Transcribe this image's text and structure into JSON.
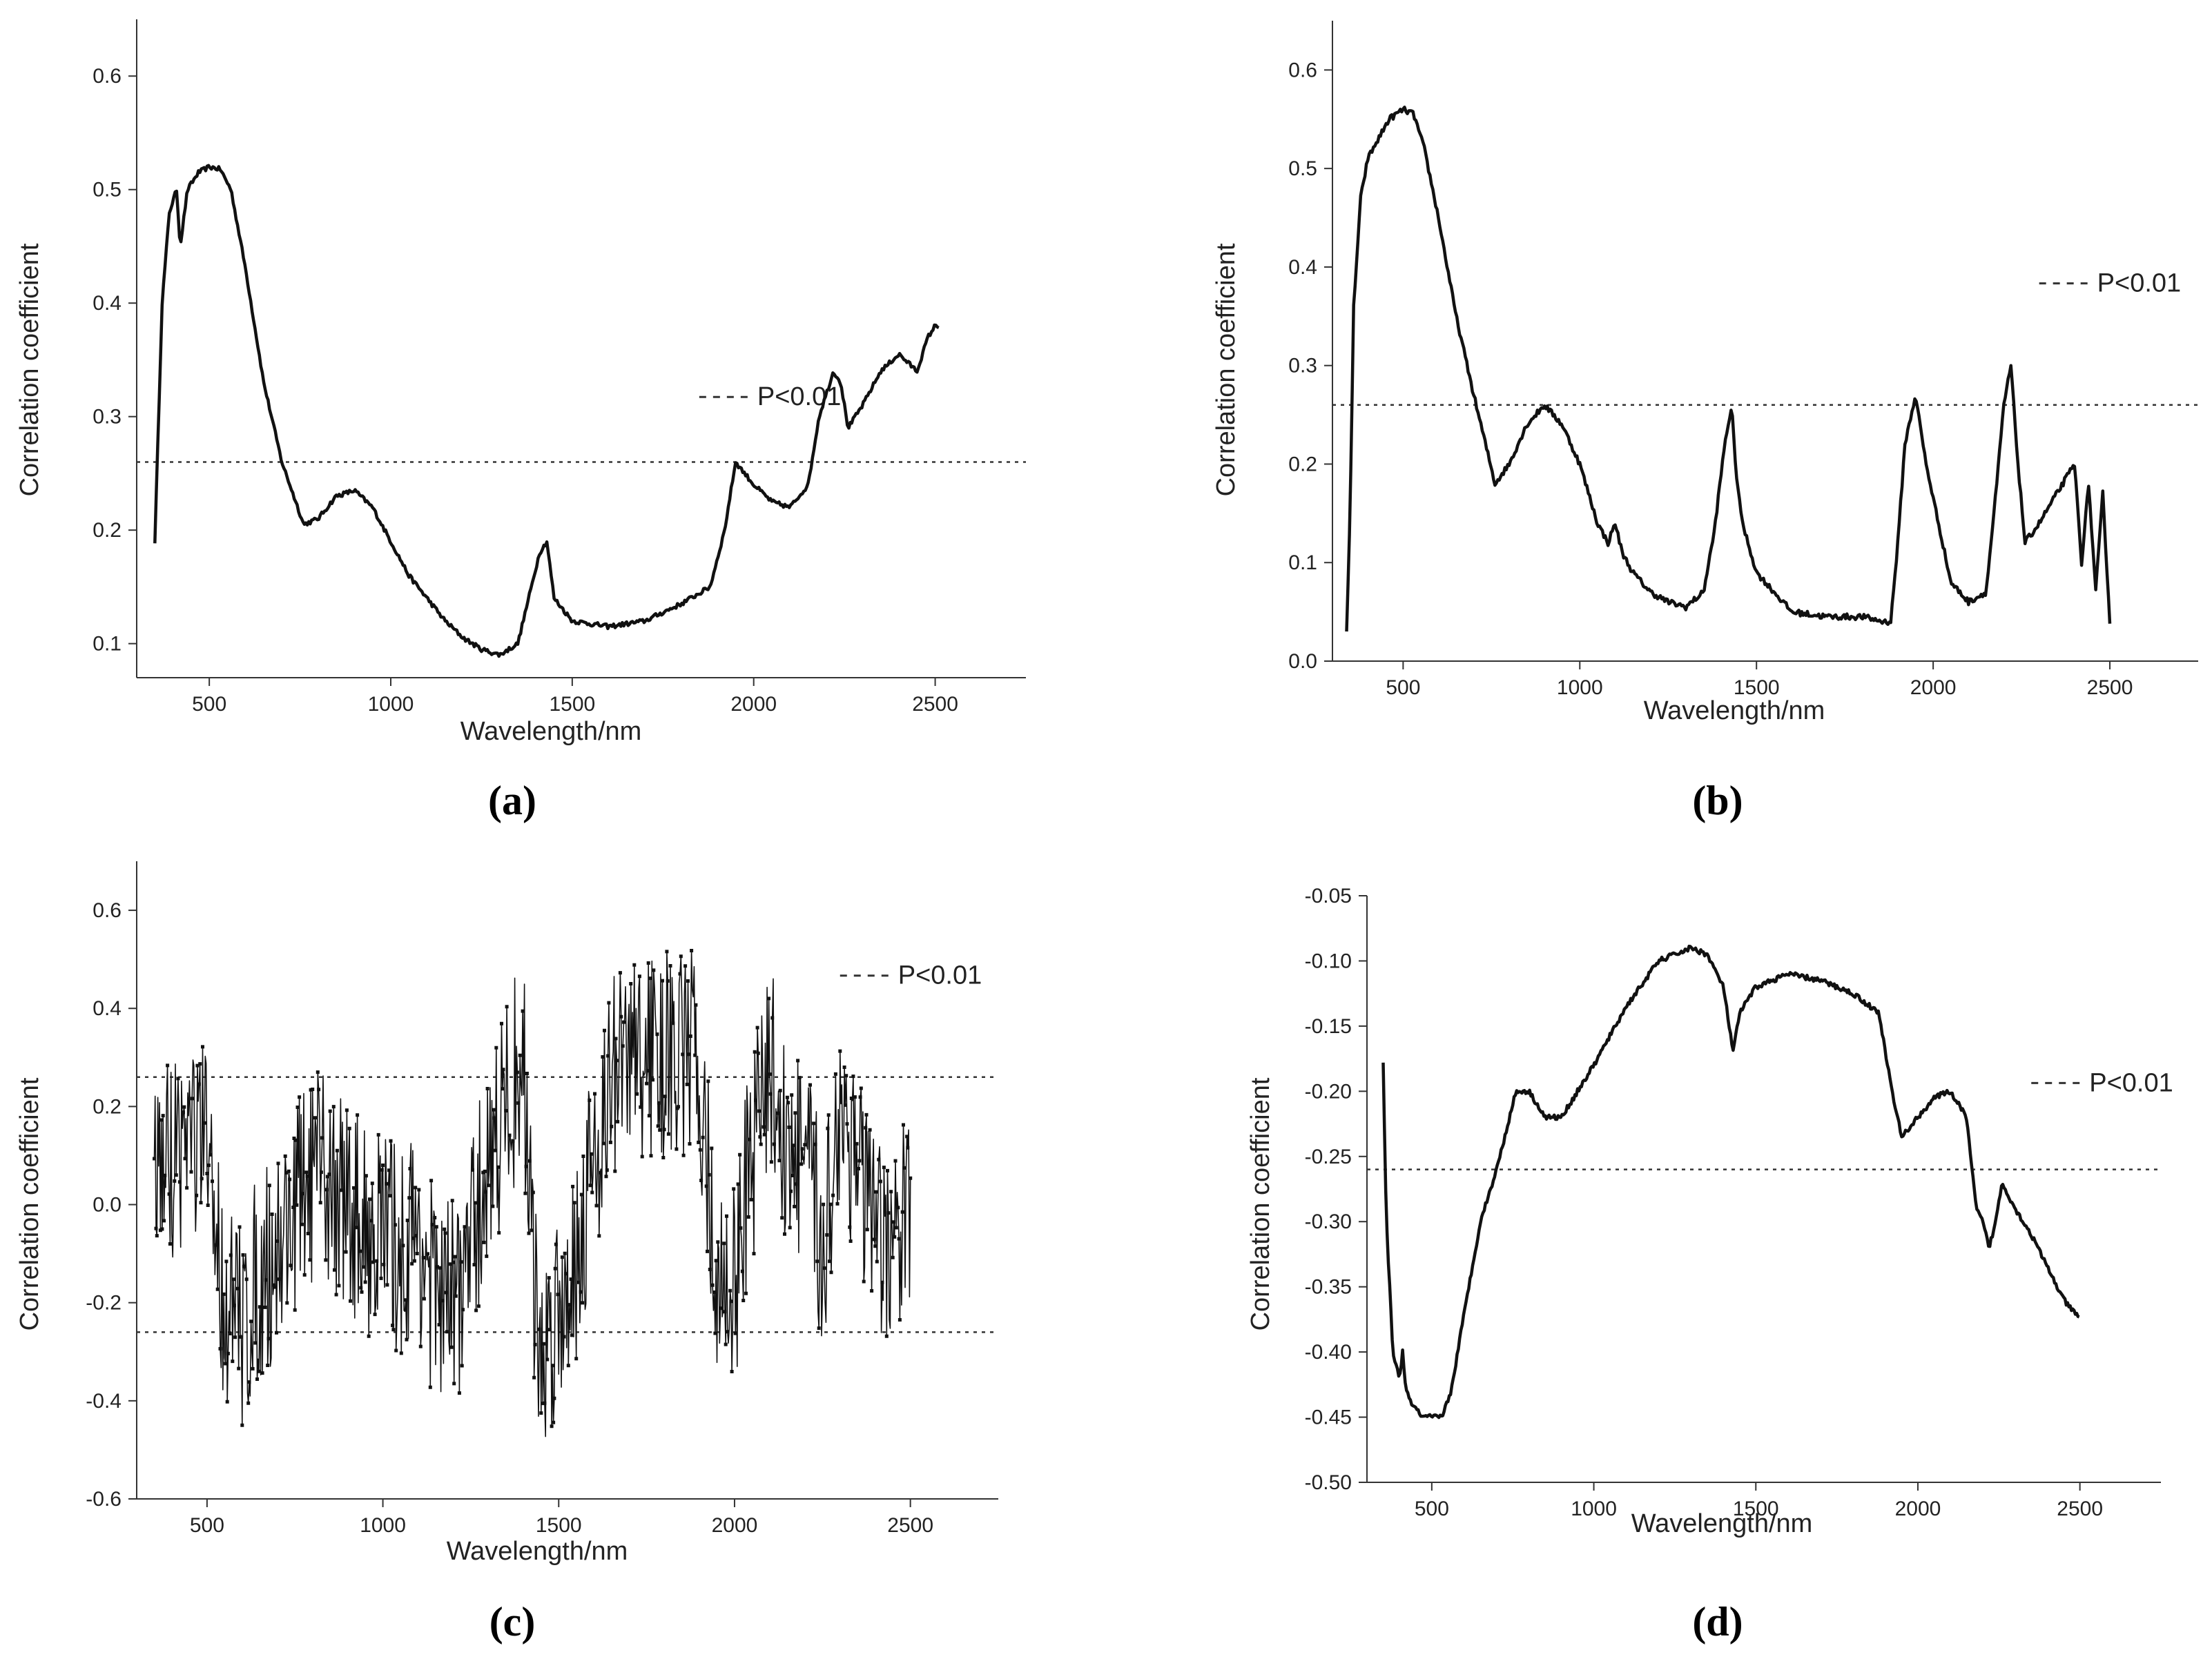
{
  "chart_data": [
    {
      "type": "line",
      "panel": "a",
      "caption": "(a)",
      "xlabel": "Wavelength/nm",
      "ylabel": "Correlation coefficient",
      "xlim": [
        300,
        2750
      ],
      "ylim": [
        0.07,
        0.65
      ],
      "xticks": [
        500,
        1000,
        1500,
        2000,
        2500
      ],
      "yticks": [
        0.1,
        0.2,
        0.3,
        0.4,
        0.5,
        0.6
      ],
      "ytick_labels": [
        "0.1",
        "0.2",
        "0.3",
        "0.4",
        "0.5",
        "0.6"
      ],
      "threshold": [
        0.26
      ],
      "legend": "P<0.01",
      "legend_pos": [
        1850,
        0.31
      ],
      "series": [
        {
          "name": "correlation",
          "noise": 0.002,
          "x": [
            350,
            370,
            390,
            410,
            420,
            440,
            470,
            500,
            530,
            560,
            600,
            650,
            700,
            760,
            800,
            850,
            900,
            950,
            1000,
            1050,
            1100,
            1150,
            1200,
            1250,
            1300,
            1350,
            1380,
            1410,
            1430,
            1450,
            1500,
            1600,
            1700,
            1800,
            1880,
            1920,
            1950,
            2000,
            2050,
            2100,
            2150,
            2180,
            2200,
            2220,
            2240,
            2260,
            2300,
            2350,
            2400,
            2450,
            2480,
            2500,
            2510
          ],
          "y": [
            0.19,
            0.4,
            0.48,
            0.5,
            0.45,
            0.5,
            0.515,
            0.52,
            0.518,
            0.5,
            0.43,
            0.33,
            0.26,
            0.205,
            0.21,
            0.23,
            0.235,
            0.22,
            0.19,
            0.16,
            0.14,
            0.12,
            0.105,
            0.095,
            0.09,
            0.1,
            0.14,
            0.18,
            0.19,
            0.14,
            0.12,
            0.115,
            0.12,
            0.135,
            0.15,
            0.2,
            0.26,
            0.24,
            0.225,
            0.22,
            0.24,
            0.3,
            0.32,
            0.34,
            0.33,
            0.29,
            0.31,
            0.34,
            0.355,
            0.34,
            0.37,
            0.38,
            0.38
          ]
        }
      ]
    },
    {
      "type": "line",
      "panel": "b",
      "caption": "(b)",
      "xlabel": "Wavelength/nm",
      "ylabel": "Correlation coefficient",
      "xlim": [
        300,
        2750
      ],
      "ylim": [
        0.0,
        0.65
      ],
      "xticks": [
        500,
        1000,
        1500,
        2000,
        2500
      ],
      "yticks": [
        0.0,
        0.1,
        0.2,
        0.3,
        0.4,
        0.5,
        0.6
      ],
      "ytick_labels": [
        "0.0",
        "0.1",
        "0.2",
        "0.3",
        "0.4",
        "0.5",
        "0.6"
      ],
      "threshold": [
        0.26
      ],
      "legend": "P<0.01",
      "legend_pos": [
        2300,
        0.375
      ],
      "series": [
        {
          "name": "correlation",
          "noise": 0.003,
          "x": [
            340,
            350,
            360,
            380,
            400,
            430,
            460,
            500,
            530,
            560,
            600,
            650,
            700,
            760,
            800,
            850,
            900,
            950,
            1000,
            1050,
            1080,
            1100,
            1120,
            1150,
            1200,
            1250,
            1300,
            1350,
            1380,
            1410,
            1430,
            1440,
            1460,
            1500,
            1600,
            1700,
            1800,
            1860,
            1880,
            1900,
            1920,
            1950,
            1980,
            2050,
            2100,
            2150,
            2180,
            2200,
            2220,
            2240,
            2260,
            2300,
            2350,
            2400,
            2420,
            2440,
            2460,
            2480,
            2500
          ],
          "y": [
            0.03,
            0.15,
            0.36,
            0.47,
            0.51,
            0.53,
            0.55,
            0.56,
            0.555,
            0.52,
            0.45,
            0.35,
            0.27,
            0.18,
            0.2,
            0.24,
            0.26,
            0.24,
            0.2,
            0.14,
            0.12,
            0.14,
            0.11,
            0.09,
            0.07,
            0.06,
            0.055,
            0.07,
            0.13,
            0.22,
            0.26,
            0.2,
            0.14,
            0.09,
            0.05,
            0.045,
            0.045,
            0.04,
            0.04,
            0.12,
            0.22,
            0.27,
            0.2,
            0.08,
            0.06,
            0.07,
            0.18,
            0.26,
            0.3,
            0.2,
            0.12,
            0.14,
            0.17,
            0.2,
            0.1,
            0.18,
            0.07,
            0.17,
            0.04
          ]
        }
      ]
    },
    {
      "type": "line",
      "panel": "c",
      "caption": "(c)",
      "xlabel": "Wavelength/nm",
      "ylabel": "Correlation coefficient",
      "xlim": [
        300,
        2750
      ],
      "ylim": [
        -0.6,
        0.7
      ],
      "xticks": [
        500,
        1000,
        1500,
        2000,
        2500
      ],
      "yticks": [
        -0.6,
        -0.4,
        -0.2,
        0.0,
        0.2,
        0.4,
        0.6
      ],
      "ytick_labels": [
        "-0.6",
        "-0.4",
        "-0.2",
        "0.0",
        "0.2",
        "0.4",
        "0.6"
      ],
      "threshold": [
        0.26,
        -0.26
      ],
      "legend": "P<0.01",
      "legend_pos": [
        2300,
        0.45
      ],
      "series": [
        {
          "name": "correlation",
          "noise": 0.22,
          "x": [
            350,
            400,
            450,
            500,
            550,
            600,
            650,
            700,
            750,
            800,
            850,
            900,
            950,
            1000,
            1050,
            1100,
            1150,
            1200,
            1250,
            1300,
            1350,
            1400,
            1420,
            1440,
            1460,
            1500,
            1550,
            1600,
            1650,
            1700,
            1800,
            1900,
            1950,
            2000,
            2050,
            2100,
            2150,
            2200,
            2250,
            2300,
            2350,
            2400,
            2450,
            2500
          ],
          "y": [
            0.05,
            0.1,
            0.15,
            0.1,
            -0.2,
            -0.25,
            -0.15,
            -0.1,
            0.0,
            0.05,
            0.05,
            0.0,
            -0.05,
            -0.05,
            -0.1,
            -0.05,
            -0.2,
            -0.2,
            -0.1,
            0.1,
            0.2,
            0.3,
            0.0,
            -0.3,
            -0.3,
            -0.2,
            -0.1,
            0.1,
            0.25,
            0.3,
            0.3,
            0.3,
            -0.2,
            -0.15,
            0.1,
            0.3,
            0.1,
            0.1,
            -0.1,
            0.2,
            0.1,
            -0.1,
            -0.1,
            0.0
          ]
        }
      ]
    },
    {
      "type": "line",
      "panel": "d",
      "caption": "(d)",
      "xlabel": "Wavelength/nm",
      "ylabel": "Correlation coefficient",
      "xlim": [
        300,
        2750
      ],
      "ylim": [
        -0.5,
        -0.05
      ],
      "xticks": [
        500,
        1000,
        1500,
        2000,
        2500
      ],
      "yticks": [
        -0.5,
        -0.45,
        -0.4,
        -0.35,
        -0.3,
        -0.25,
        -0.2,
        -0.15,
        -0.1,
        -0.05
      ],
      "ytick_labels": [
        "-0.50",
        "-0.45",
        "-0.40",
        "-0.35",
        "-0.30",
        "-0.25",
        "-0.20",
        "-0.15",
        "-0.10",
        "-0.05"
      ],
      "threshold": [
        -0.26
      ],
      "legend": "P<0.01",
      "legend_pos": [
        2350,
        -0.2
      ],
      "series": [
        {
          "name": "correlation",
          "noise": 0.002,
          "x": [
            350,
            360,
            380,
            400,
            410,
            420,
            440,
            470,
            500,
            530,
            560,
            600,
            650,
            700,
            760,
            800,
            850,
            900,
            950,
            1000,
            1100,
            1200,
            1300,
            1350,
            1400,
            1430,
            1450,
            1500,
            1600,
            1700,
            1800,
            1880,
            1920,
            1950,
            2000,
            2050,
            2100,
            2150,
            2180,
            2200,
            2220,
            2240,
            2260,
            2300,
            2350,
            2400,
            2450,
            2500
          ],
          "y": [
            -0.18,
            -0.3,
            -0.4,
            -0.42,
            -0.4,
            -0.43,
            -0.44,
            -0.45,
            -0.45,
            -0.45,
            -0.43,
            -0.37,
            -0.3,
            -0.26,
            -0.2,
            -0.2,
            -0.22,
            -0.22,
            -0.2,
            -0.18,
            -0.135,
            -0.1,
            -0.09,
            -0.095,
            -0.12,
            -0.17,
            -0.14,
            -0.12,
            -0.11,
            -0.115,
            -0.125,
            -0.14,
            -0.2,
            -0.235,
            -0.22,
            -0.205,
            -0.2,
            -0.22,
            -0.29,
            -0.3,
            -0.32,
            -0.3,
            -0.27,
            -0.29,
            -0.31,
            -0.335,
            -0.36,
            -0.375
          ]
        }
      ]
    }
  ]
}
